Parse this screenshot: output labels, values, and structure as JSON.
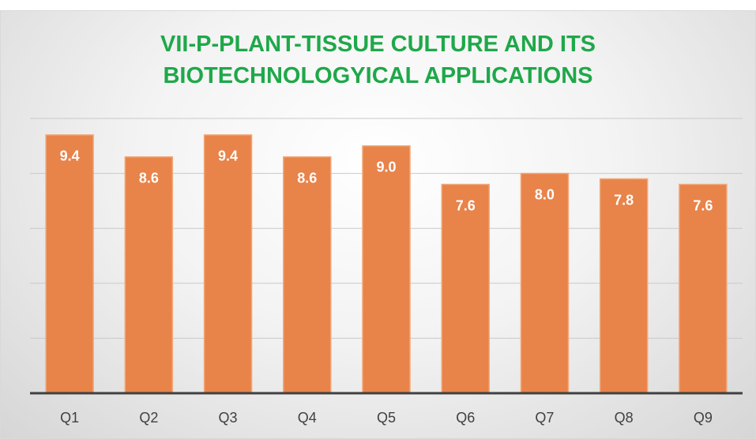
{
  "chart_data": {
    "type": "bar",
    "title": "VII-P-PLANT-TISSUE CULTURE AND ITS BIOTECHNOLOGYICAL APPLICATIONS",
    "categories": [
      "Q1",
      "Q2",
      "Q3",
      "Q4",
      "Q5",
      "Q6",
      "Q7",
      "Q8",
      "Q9"
    ],
    "values": [
      9.4,
      8.6,
      9.4,
      8.6,
      9,
      7.6,
      8,
      7.8,
      7.6
    ],
    "value_labels": [
      "9.4",
      "8.6",
      "9.4",
      "8.6",
      "9.0",
      "7.6",
      "8.0",
      "7.8",
      "7.6"
    ],
    "color": "#e8834a",
    "ylim": [
      0,
      10
    ],
    "yticks": [
      0,
      2,
      4,
      6,
      8,
      10
    ],
    "grid": true
  }
}
